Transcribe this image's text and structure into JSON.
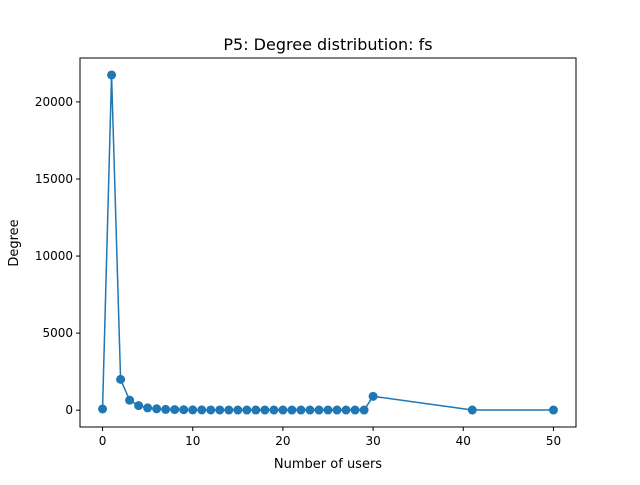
{
  "chart_data": {
    "type": "line",
    "title": "P5: Degree distribution: fs",
    "xlabel": "Number of users",
    "ylabel": "Degree",
    "xlim": [
      -2.5,
      52.5
    ],
    "ylim": [
      -1090,
      22850
    ],
    "xticks": [
      0,
      10,
      20,
      30,
      40,
      50
    ],
    "yticks": [
      0,
      5000,
      10000,
      15000,
      20000
    ],
    "grid": false,
    "legend": "none",
    "marker": "circle",
    "color": "#1f77b4",
    "series": [
      {
        "x": [
          0,
          1,
          2,
          3,
          4,
          5,
          6,
          7,
          8,
          9,
          10,
          11,
          12,
          13,
          14,
          15,
          16,
          17,
          18,
          19,
          20,
          21,
          22,
          23,
          24,
          25,
          26,
          27,
          28,
          29,
          30,
          41,
          50
        ],
        "y": [
          80,
          21750,
          2000,
          650,
          300,
          150,
          90,
          50,
          40,
          30,
          20,
          20,
          15,
          15,
          10,
          10,
          10,
          10,
          10,
          10,
          10,
          10,
          10,
          10,
          10,
          10,
          10,
          10,
          10,
          10,
          900,
          10,
          10
        ]
      }
    ]
  }
}
